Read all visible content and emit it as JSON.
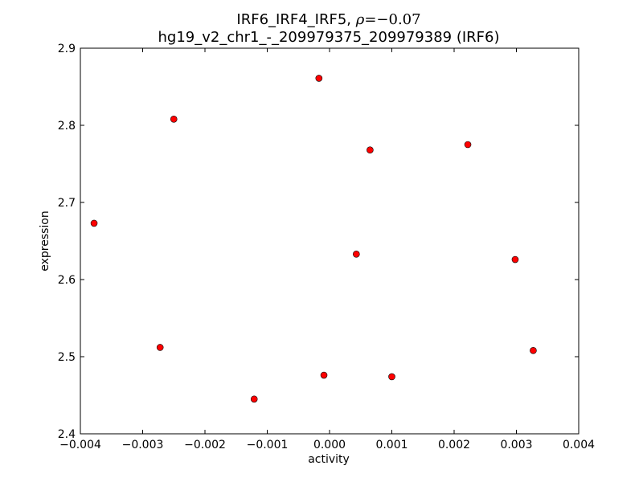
{
  "chart_data": {
    "type": "scatter",
    "title_line1_prefix": "IRF6_IRF4_IRF5, ",
    "title_rho_symbol": "ρ",
    "title_rho_value": "=−0.07",
    "title_line2": "hg19_v2_chr1_-_209979375_209979389 (IRF6)",
    "xlabel": "activity",
    "ylabel": "expression",
    "xlim": [
      -0.004,
      0.004
    ],
    "ylim": [
      2.4,
      2.9
    ],
    "xticks": [
      -0.004,
      -0.003,
      -0.002,
      -0.001,
      0.0,
      0.001,
      0.002,
      0.003,
      0.004
    ],
    "xtick_labels": [
      "−0.004",
      "−0.003",
      "−0.002",
      "−0.001",
      "0.000",
      "0.001",
      "0.002",
      "0.003",
      "0.004"
    ],
    "yticks": [
      2.4,
      2.5,
      2.6,
      2.7,
      2.8,
      2.9
    ],
    "ytick_labels": [
      "2.4",
      "2.5",
      "2.6",
      "2.7",
      "2.8",
      "2.9"
    ],
    "grid": false,
    "marker_color": "#ff0000",
    "marker_edge_color": "#000000",
    "points": [
      {
        "x": -0.00378,
        "y": 2.673
      },
      {
        "x": -0.0025,
        "y": 2.808
      },
      {
        "x": -0.00272,
        "y": 2.512
      },
      {
        "x": -0.00121,
        "y": 2.445
      },
      {
        "x": -0.00017,
        "y": 2.861
      },
      {
        "x": -9e-05,
        "y": 2.476
      },
      {
        "x": 0.00043,
        "y": 2.633
      },
      {
        "x": 0.00065,
        "y": 2.768
      },
      {
        "x": 0.001,
        "y": 2.474
      },
      {
        "x": 0.00222,
        "y": 2.775
      },
      {
        "x": 0.00298,
        "y": 2.626
      },
      {
        "x": 0.00327,
        "y": 2.508
      }
    ]
  }
}
